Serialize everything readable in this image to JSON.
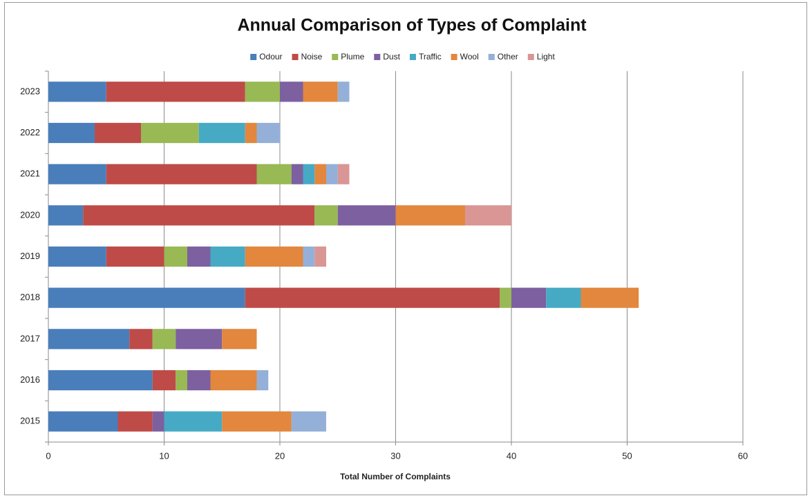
{
  "chart_data": {
    "type": "bar",
    "orientation": "horizontal",
    "stacked": true,
    "title": "Annual Comparison of Types of Complaint",
    "x_label": "Total Number of Complaints",
    "categories": [
      "2015",
      "2016",
      "2017",
      "2018",
      "2019",
      "2020",
      "2021",
      "2022",
      "2023"
    ],
    "series": [
      {
        "name": "Odour",
        "color": "#4a7ebb",
        "values": [
          6,
          9,
          7,
          17,
          5,
          3,
          5,
          4,
          5
        ]
      },
      {
        "name": "Noise",
        "color": "#be4b48",
        "values": [
          3,
          2,
          2,
          22,
          5,
          20,
          13,
          4,
          12
        ]
      },
      {
        "name": "Plume",
        "color": "#98b954",
        "values": [
          0,
          1,
          2,
          1,
          2,
          2,
          3,
          5,
          3
        ]
      },
      {
        "name": "Dust",
        "color": "#7d60a0",
        "values": [
          1,
          2,
          4,
          3,
          2,
          5,
          1,
          0,
          2
        ]
      },
      {
        "name": "Traffic",
        "color": "#46aac5",
        "values": [
          5,
          0,
          0,
          3,
          3,
          0,
          1,
          4,
          0
        ]
      },
      {
        "name": "Wool",
        "color": "#e2873d",
        "values": [
          6,
          4,
          3,
          5,
          5,
          6,
          1,
          1,
          3
        ]
      },
      {
        "name": "Other",
        "color": "#94b0d8",
        "values": [
          3,
          1,
          0,
          0,
          1,
          0,
          1,
          2,
          1
        ]
      },
      {
        "name": "Light",
        "color": "#d99694",
        "values": [
          0,
          0,
          0,
          0,
          1,
          4,
          1,
          0,
          0
        ]
      }
    ],
    "xlim": [
      0,
      60
    ],
    "xticks": [
      0,
      10,
      20,
      30,
      40,
      50,
      60
    ],
    "grid": true,
    "legend": "top"
  }
}
